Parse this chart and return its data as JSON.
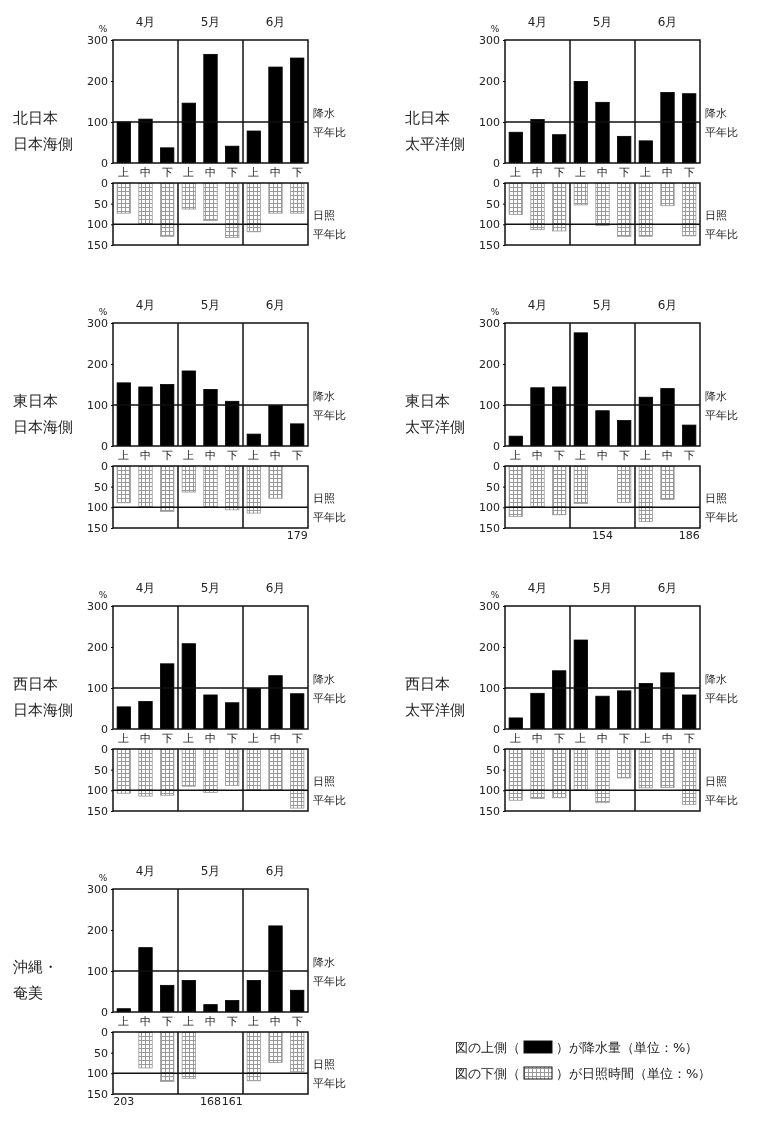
{
  "chart_data": [
    {
      "type": "bar",
      "title": "北日本",
      "subtitle": "日本海側",
      "ylabel": "%",
      "categories": [
        "上",
        "中",
        "下",
        "上",
        "中",
        "下",
        "上",
        "中",
        "下"
      ],
      "ylim": [
        0,
        300
      ],
      "yticks": [
        0,
        100,
        200,
        300
      ],
      "annotations": [
        "4月",
        "5月",
        "6月",
        "平年比"
      ],
      "ref_lines": [
        {
          "axis": "y",
          "value": 100,
          "label": "降水"
        }
      ],
      "series": [
        {
          "color": "#000000",
          "values": [
            100,
            107,
            37,
            146,
            265,
            41,
            78,
            234,
            256
          ]
        }
      ]
    },
    {
      "type": "bar",
      "categories": [
        null,
        null,
        null,
        null,
        null,
        null,
        null,
        null,
        null
      ],
      "ylim": [
        150,
        0
      ],
      "yticks": [
        0,
        50,
        100,
        150
      ],
      "tick_labels": "y",
      "annotations": [
        "平年比"
      ],
      "ref_lines": [
        {
          "axis": "y",
          "value": 100,
          "label": "日照"
        }
      ],
      "series": [
        {
          "color": "#999999",
          "values": [
            73,
            100,
            129,
            63,
            91,
            132,
            118,
            73,
            73
          ]
        }
      ]
    },
    {
      "type": "bar",
      "title": "北日本",
      "subtitle": "太平洋側",
      "ylabel": "%",
      "categories": [
        "上",
        "中",
        "下",
        "上",
        "中",
        "下",
        "上",
        "中",
        "下"
      ],
      "ylim": [
        0,
        300
      ],
      "yticks": [
        0,
        100,
        200,
        300
      ],
      "annotations": [
        "4月",
        "5月",
        "6月",
        "平年比"
      ],
      "ref_lines": [
        {
          "axis": "y",
          "value": 100,
          "label": "降水"
        }
      ],
      "series": [
        {
          "color": "#000000",
          "values": [
            75,
            106,
            69,
            199,
            148,
            65,
            54,
            172,
            169
          ]
        }
      ]
    },
    {
      "type": "bar",
      "categories": [
        null,
        null,
        null,
        null,
        null,
        null,
        null,
        null,
        null
      ],
      "ylim": [
        150,
        0
      ],
      "yticks": [
        0,
        50,
        100,
        150
      ],
      "tick_labels": "y",
      "annotations": [
        "平年比"
      ],
      "ref_lines": [
        {
          "axis": "y",
          "value": 100,
          "label": "日照"
        }
      ],
      "series": [
        {
          "color": "#999999",
          "values": [
            76,
            113,
            116,
            53,
            103,
            129,
            129,
            55,
            128
          ]
        }
      ]
    },
    {
      "type": "bar",
      "title": "東日本",
      "subtitle": "日本海側",
      "ylabel": "%",
      "categories": [
        "上",
        "中",
        "下",
        "上",
        "中",
        "下",
        "上",
        "中",
        "下"
      ],
      "ylim": [
        0,
        300
      ],
      "yticks": [
        0,
        100,
        200,
        300
      ],
      "annotations": [
        "4月",
        "5月",
        "6月",
        "平年比"
      ],
      "ref_lines": [
        {
          "axis": "y",
          "value": 100,
          "label": "降水"
        }
      ],
      "series": [
        {
          "color": "#000000",
          "values": [
            154,
            144,
            150,
            183,
            138,
            109,
            29,
            99,
            54
          ]
        }
      ]
    },
    {
      "type": "bar",
      "categories": [
        null,
        null,
        null,
        null,
        null,
        null,
        null,
        null,
        null
      ],
      "ylim": [
        150,
        0
      ],
      "yticks": [
        0,
        50,
        100,
        150
      ],
      "tick_labels": "y",
      "annotations": [
        "平年比"
      ],
      "ref_lines": [
        {
          "axis": "y",
          "value": 100,
          "label": "日照"
        }
      ],
      "series": [
        {
          "color": "#999999",
          "values": [
            89,
            100,
            110,
            63,
            100,
            106,
            114,
            78,
            null
          ],
          "value_labels": [
            null,
            null,
            null,
            null,
            null,
            null,
            null,
            null,
            "179"
          ]
        }
      ]
    },
    {
      "type": "bar",
      "title": "東日本",
      "subtitle": "太平洋側",
      "ylabel": "%",
      "categories": [
        "上",
        "中",
        "下",
        "上",
        "中",
        "下",
        "上",
        "中",
        "下"
      ],
      "ylim": [
        0,
        300
      ],
      "yticks": [
        0,
        100,
        200,
        300
      ],
      "annotations": [
        "4月",
        "5月",
        "6月",
        "平年比"
      ],
      "ref_lines": [
        {
          "axis": "y",
          "value": 100,
          "label": "降水"
        }
      ],
      "series": [
        {
          "color": "#000000",
          "values": [
            24,
            142,
            144,
            276,
            86,
            62,
            119,
            140,
            51
          ]
        }
      ]
    },
    {
      "type": "bar",
      "categories": [
        null,
        null,
        null,
        null,
        null,
        null,
        null,
        null,
        null
      ],
      "ylim": [
        150,
        0
      ],
      "yticks": [
        0,
        50,
        100,
        150
      ],
      "tick_labels": "y",
      "annotations": [
        "平年比"
      ],
      "ref_lines": [
        {
          "axis": "y",
          "value": 100,
          "label": "日照"
        }
      ],
      "series": [
        {
          "color": "#999999",
          "values": [
            122,
            100,
            118,
            91,
            null,
            88,
            134,
            81,
            null
          ],
          "value_labels": [
            null,
            null,
            null,
            null,
            "154",
            null,
            null,
            null,
            "186"
          ]
        }
      ]
    },
    {
      "type": "bar",
      "title": "西日本",
      "subtitle": "日本海側",
      "ylabel": "%",
      "categories": [
        "上",
        "中",
        "下",
        "上",
        "中",
        "下",
        "上",
        "中",
        "下"
      ],
      "ylim": [
        0,
        300
      ],
      "yticks": [
        0,
        100,
        200,
        300
      ],
      "annotations": [
        "4月",
        "5月",
        "6月",
        "平年比"
      ],
      "ref_lines": [
        {
          "axis": "y",
          "value": 100,
          "label": "降水"
        }
      ],
      "series": [
        {
          "color": "#000000",
          "values": [
            54,
            67,
            159,
            208,
            83,
            64,
            99,
            130,
            86
          ]
        }
      ]
    },
    {
      "type": "bar",
      "categories": [
        null,
        null,
        null,
        null,
        null,
        null,
        null,
        null,
        null
      ],
      "ylim": [
        150,
        0
      ],
      "yticks": [
        0,
        50,
        100,
        150
      ],
      "tick_labels": "y",
      "annotations": [
        "平年比"
      ],
      "ref_lines": [
        {
          "axis": "y",
          "value": 100,
          "label": "日照"
        }
      ],
      "series": [
        {
          "color": "#999999",
          "values": [
            107,
            114,
            112,
            90,
            105,
            88,
            100,
            100,
            143
          ]
        }
      ]
    },
    {
      "type": "bar",
      "title": "西日本",
      "subtitle": "太平洋側",
      "ylabel": "%",
      "categories": [
        "上",
        "中",
        "下",
        "上",
        "中",
        "下",
        "上",
        "中",
        "下"
      ],
      "ylim": [
        0,
        300
      ],
      "yticks": [
        0,
        100,
        200,
        300
      ],
      "annotations": [
        "4月",
        "5月",
        "6月",
        "平年比"
      ],
      "ref_lines": [
        {
          "axis": "y",
          "value": 100,
          "label": "降水"
        }
      ],
      "series": [
        {
          "color": "#000000",
          "values": [
            27,
            87,
            142,
            217,
            80,
            93,
            111,
            137,
            83
          ]
        }
      ]
    },
    {
      "type": "bar",
      "categories": [
        null,
        null,
        null,
        null,
        null,
        null,
        null,
        null,
        null
      ],
      "ylim": [
        150,
        0
      ],
      "yticks": [
        0,
        50,
        100,
        150
      ],
      "tick_labels": "y",
      "annotations": [
        "平年比"
      ],
      "ref_lines": [
        {
          "axis": "y",
          "value": 100,
          "label": "日照"
        }
      ],
      "series": [
        {
          "color": "#999999",
          "values": [
            124,
            120,
            118,
            98,
            130,
            70,
            94,
            93,
            134
          ]
        }
      ]
    },
    {
      "type": "bar",
      "title": "沖縄・",
      "subtitle": "奄美",
      "ylabel": "%",
      "categories": [
        "上",
        "中",
        "下",
        "上",
        "中",
        "下",
        "上",
        "中",
        "下"
      ],
      "ylim": [
        0,
        300
      ],
      "yticks": [
        0,
        100,
        200,
        300
      ],
      "annotations": [
        "4月",
        "5月",
        "6月",
        "平年比"
      ],
      "ref_lines": [
        {
          "axis": "y",
          "value": 100,
          "label": "降水"
        }
      ],
      "series": [
        {
          "color": "#000000",
          "values": [
            8,
            157,
            65,
            77,
            18,
            28,
            77,
            210,
            53
          ]
        }
      ]
    },
    {
      "type": "bar",
      "categories": [
        null,
        null,
        null,
        null,
        null,
        null,
        null,
        null,
        null
      ],
      "ylim": [
        150,
        0
      ],
      "yticks": [
        0,
        50,
        100,
        150
      ],
      "tick_labels": "y",
      "annotations": [
        "平年比"
      ],
      "ref_lines": [
        {
          "axis": "y",
          "value": 100,
          "label": "日照"
        }
      ],
      "series": [
        {
          "color": "#999999",
          "values": [
            null,
            87,
            120,
            112,
            null,
            null,
            118,
            74,
            96
          ],
          "value_labels": [
            "203",
            null,
            null,
            null,
            "168",
            "161",
            null,
            null,
            null
          ]
        }
      ]
    },
    {
      "type": "other",
      "annotations": [
        "図の上側（",
        "）が降水量（単位：%）",
        "図の下側（",
        "）が日照時間（単位：%）"
      ]
    }
  ]
}
